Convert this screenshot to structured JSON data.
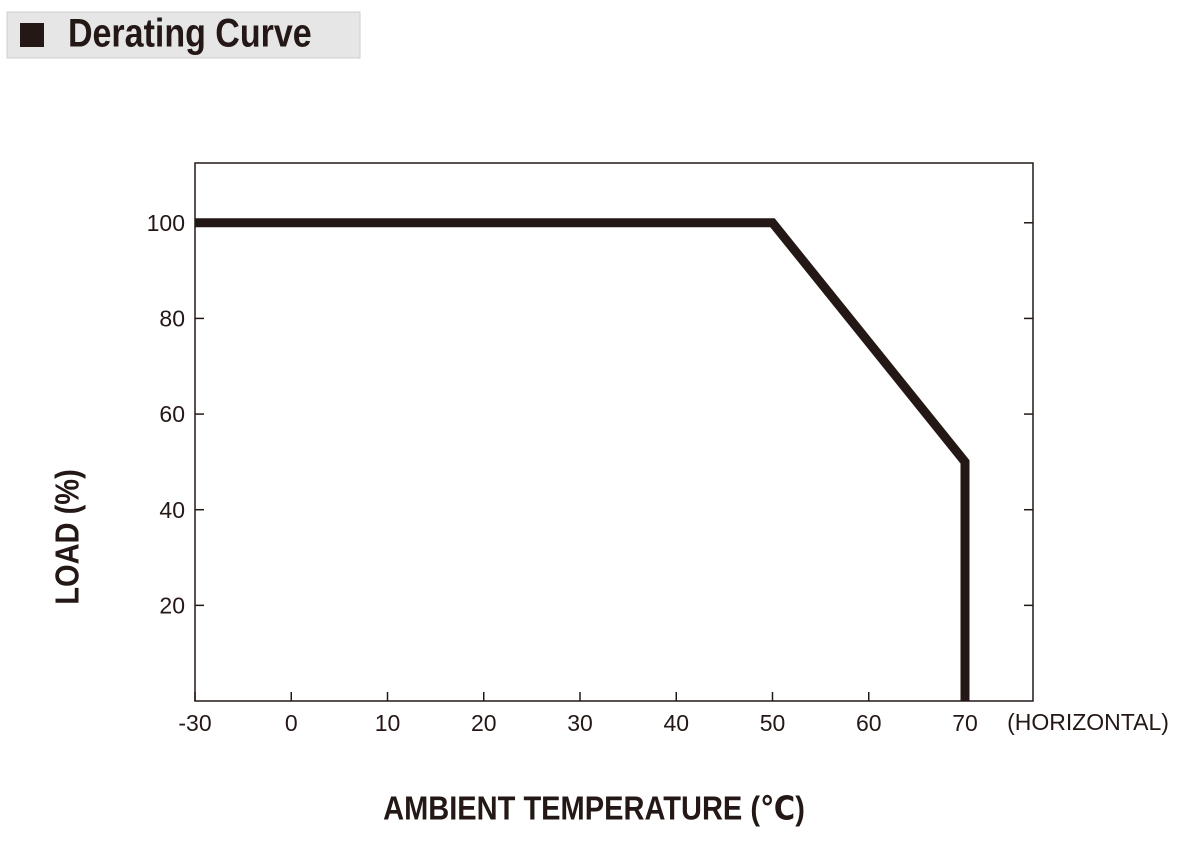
{
  "chart_data": {
    "type": "line",
    "title": "Derating Curve",
    "x_label": "AMBIENT TEMPERATURE (℃)",
    "y_label": "LOAD (%)",
    "annotation": "(HORIZONTAL)",
    "series": [
      {
        "name": "LOAD",
        "color": "#231815",
        "x": [
          -30,
          50,
          70,
          70
        ],
        "values": [
          100,
          100,
          50,
          0
        ]
      }
    ],
    "xlim": [
      -30,
      77
    ],
    "xticks": [
      -30,
      0,
      10,
      20,
      30,
      40,
      50,
      60,
      70
    ],
    "ylim": [
      0,
      112.5
    ],
    "yticks": [
      20,
      40,
      60,
      80,
      100
    ]
  }
}
